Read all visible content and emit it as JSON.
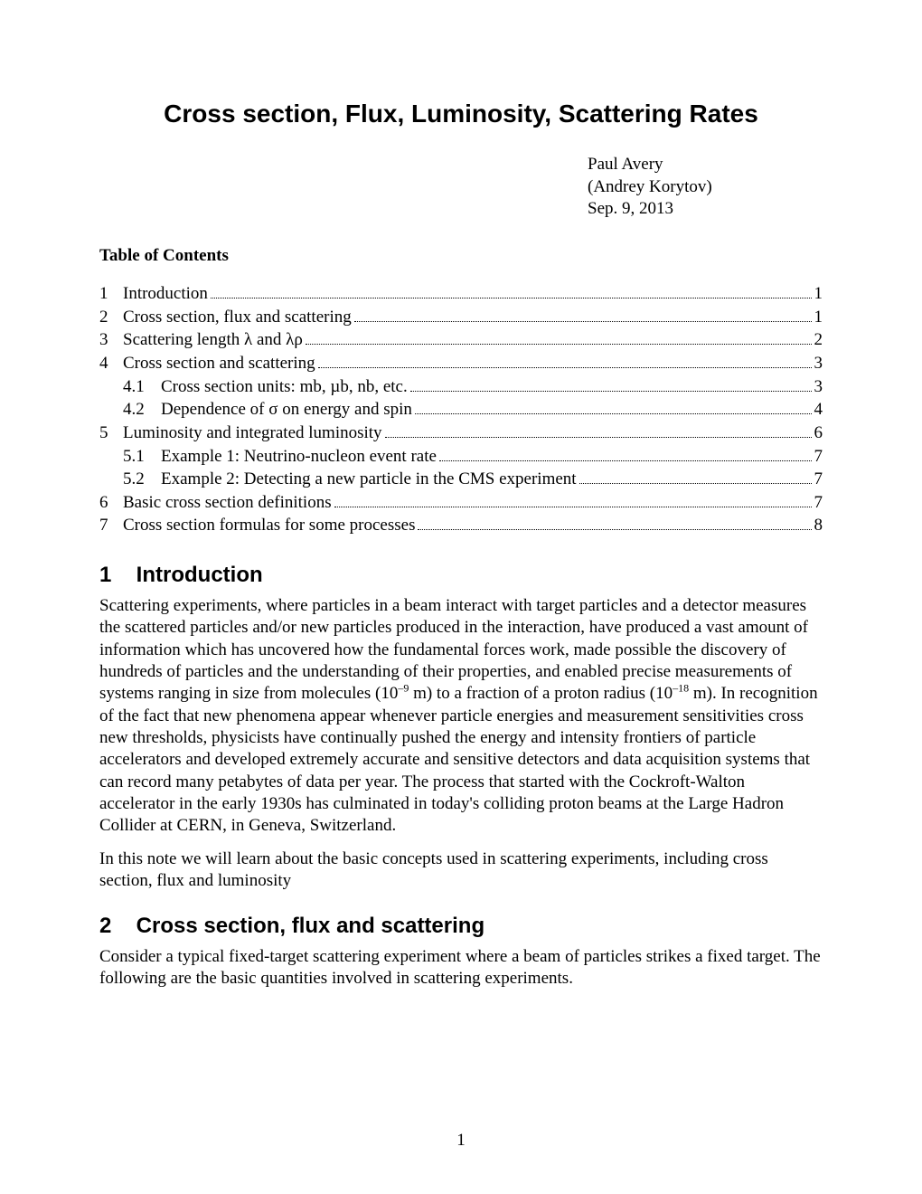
{
  "title": "Cross section, Flux, Luminosity, Scattering Rates",
  "authors": {
    "line1": "Paul Avery",
    "line2": "(Andrey Korytov)",
    "date": "Sep. 9, 2013"
  },
  "toc_heading": "Table of Contents",
  "toc": [
    {
      "num": "1",
      "title": "Introduction",
      "page": "1",
      "level": 0
    },
    {
      "num": "2",
      "title": "Cross section, flux and scattering",
      "page": "1",
      "level": 0
    },
    {
      "num": "3",
      "title": "Scattering length λ and λρ",
      "page": "2",
      "level": 0
    },
    {
      "num": "4",
      "title": "Cross section and scattering",
      "page": "3",
      "level": 0
    },
    {
      "num": "4.1",
      "title": "Cross section units: mb, µb, nb, etc.",
      "page": "3",
      "level": 1
    },
    {
      "num": "4.2",
      "title": "Dependence of σ on energy and spin",
      "page": "4",
      "level": 1
    },
    {
      "num": "5",
      "title": "Luminosity and integrated luminosity",
      "page": "6",
      "level": 0
    },
    {
      "num": "5.1",
      "title": "Example 1: Neutrino-nucleon event rate",
      "page": "7",
      "level": 1
    },
    {
      "num": "5.2",
      "title": "Example 2: Detecting a new particle in the CMS experiment",
      "page": "7",
      "level": 1
    },
    {
      "num": "6",
      "title": "Basic cross section definitions",
      "page": "7",
      "level": 0
    },
    {
      "num": "7",
      "title": "Cross section formulas for some processes",
      "page": "8",
      "level": 0
    }
  ],
  "sections": {
    "s1": {
      "num": "1",
      "heading": "Introduction"
    },
    "s2": {
      "num": "2",
      "heading": "Cross section, flux and scattering"
    }
  },
  "body": {
    "intro_p1a": "Scattering experiments, where particles in a beam interact with target particles and a detector measures the scattered particles and/or new particles produced in the interaction, have produced a vast amount of information which has uncovered how the fundamental forces work, made possible the discovery of hundreds of particles and the understanding of their properties, and enabled precise measurements of systems ranging in size from molecules (10",
    "intro_p1_sup1": "–9",
    "intro_p1b": " m) to a fraction of a proton radius (10",
    "intro_p1_sup2": "–18",
    "intro_p1c": " m). In recognition of the fact that new phenomena appear whenever particle energies and measurement sensitivities cross new thresholds, physicists have continually pushed the energy and intensity frontiers of particle accelerators and developed extremely accurate and sensitive detectors and data acquisition systems that can record many petabytes of data per year. The process that started with the Cockroft-Walton accelerator in the early 1930s has culminated in today's colliding proton beams at the Large Hadron Collider at CERN, in Geneva, Switzerland.",
    "intro_p2": "In this note we will learn about the basic concepts used in scattering experiments, including cross section, flux and luminosity",
    "s2_p1": "Consider a typical fixed-target scattering experiment where a beam of particles strikes a fixed target. The following are the basic quantities involved in scattering experiments."
  },
  "page_number": "1"
}
